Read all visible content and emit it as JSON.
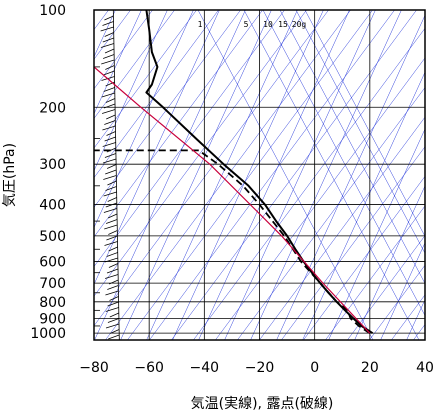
{
  "chart_data": {
    "type": "skew-t",
    "xlabel": "気温(実線), 露点(破線)",
    "ylabel": "気圧(hPa)",
    "x_ticks": [
      -80,
      -60,
      -40,
      -20,
      0,
      20,
      40
    ],
    "y_ticks": [
      100,
      200,
      300,
      400,
      500,
      600,
      700,
      800,
      900,
      1000
    ],
    "xlim": [
      -80,
      40
    ],
    "ylim": [
      1050,
      100
    ],
    "y_scale": "log",
    "mixing_ratio_labels": [
      "1",
      "5",
      "10",
      "15",
      "20g"
    ],
    "colors": {
      "temperature": "#000000",
      "dewpoint": "#000000",
      "parcel": "#c8003c",
      "guides": "#3344dd",
      "grid": "#000000"
    },
    "series": [
      {
        "name": "temperature",
        "style": "solid",
        "points": [
          {
            "p": 1000,
            "x": 21
          },
          {
            "p": 950,
            "x": 17
          },
          {
            "p": 900,
            "x": 14
          },
          {
            "p": 850,
            "x": 11
          },
          {
            "p": 800,
            "x": 8
          },
          {
            "p": 750,
            "x": 5
          },
          {
            "p": 700,
            "x": 2
          },
          {
            "p": 650,
            "x": -1
          },
          {
            "p": 600,
            "x": -4
          },
          {
            "p": 550,
            "x": -7
          },
          {
            "p": 500,
            "x": -10
          },
          {
            "p": 450,
            "x": -14
          },
          {
            "p": 400,
            "x": -18
          },
          {
            "p": 350,
            "x": -24
          },
          {
            "p": 300,
            "x": -33
          },
          {
            "p": 250,
            "x": -43
          },
          {
            "p": 200,
            "x": -55
          },
          {
            "p": 180,
            "x": -61
          },
          {
            "p": 170,
            "x": -59
          },
          {
            "p": 150,
            "x": -57
          },
          {
            "p": 135,
            "x": -59
          },
          {
            "p": 115,
            "x": -60
          },
          {
            "p": 100,
            "x": -61
          }
        ]
      },
      {
        "name": "dewpoint",
        "style": "dashed",
        "points": [
          {
            "p": 1000,
            "x": 20
          },
          {
            "p": 950,
            "x": 16
          },
          {
            "p": 900,
            "x": 13
          },
          {
            "p": 850,
            "x": 12
          },
          {
            "p": 800,
            "x": 8
          },
          {
            "p": 700,
            "x": 2
          },
          {
            "p": 600,
            "x": -5
          },
          {
            "p": 500,
            "x": -11
          },
          {
            "p": 400,
            "x": -20
          },
          {
            "p": 350,
            "x": -26
          },
          {
            "p": 300,
            "x": -35
          },
          {
            "p": 272,
            "x": -42
          },
          {
            "p": 272,
            "x": -80
          }
        ]
      },
      {
        "name": "parcel",
        "style": "solid",
        "points": [
          {
            "p": 1000,
            "x": 20
          },
          {
            "p": 700,
            "x": 3
          },
          {
            "p": 500,
            "x": -12
          },
          {
            "p": 300,
            "x": -38
          },
          {
            "p": 200,
            "x": -63
          },
          {
            "p": 150,
            "x": -80
          }
        ]
      }
    ]
  }
}
